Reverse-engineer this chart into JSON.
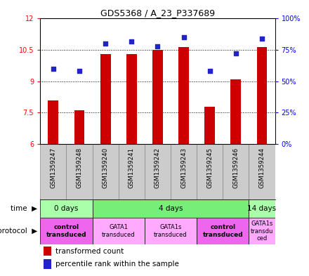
{
  "title": "GDS5368 / A_23_P337689",
  "samples": [
    "GSM1359247",
    "GSM1359248",
    "GSM1359240",
    "GSM1359241",
    "GSM1359242",
    "GSM1359243",
    "GSM1359245",
    "GSM1359246",
    "GSM1359244"
  ],
  "transformed_count": [
    8.1,
    7.6,
    10.3,
    10.3,
    10.5,
    10.65,
    7.8,
    9.1,
    10.65
  ],
  "percentile_rank": [
    60,
    58,
    80,
    82,
    78,
    85,
    58,
    72,
    84
  ],
  "ylim_left": [
    6,
    12
  ],
  "ylim_right": [
    0,
    100
  ],
  "yticks_left": [
    6,
    7.5,
    9,
    10.5,
    12
  ],
  "yticks_right": [
    0,
    25,
    50,
    75,
    100
  ],
  "bar_color": "#cc0000",
  "dot_color": "#2222cc",
  "bar_bottom": 6,
  "time_groups": [
    {
      "label": "0 days",
      "start": 0,
      "end": 2,
      "color": "#aaffaa"
    },
    {
      "label": "4 days",
      "start": 2,
      "end": 8,
      "color": "#77ee77"
    },
    {
      "label": "14 days",
      "start": 8,
      "end": 9,
      "color": "#aaffaa"
    }
  ],
  "protocol_groups": [
    {
      "label": "control\ntransduced",
      "start": 0,
      "end": 2,
      "color": "#ee66ee",
      "bold": true
    },
    {
      "label": "GATA1\ntransduced",
      "start": 2,
      "end": 4,
      "color": "#ffaaff",
      "bold": false
    },
    {
      "label": "GATA1s\ntransduced",
      "start": 4,
      "end": 6,
      "color": "#ffaaff",
      "bold": false
    },
    {
      "label": "control\ntransduced",
      "start": 6,
      "end": 8,
      "color": "#ee66ee",
      "bold": true
    },
    {
      "label": "GATA1s\ntransdu\nced",
      "start": 8,
      "end": 9,
      "color": "#ffaaff",
      "bold": false
    }
  ],
  "legend_red_label": "transformed count",
  "legend_blue_label": "percentile rank within the sample",
  "sample_bg_color": "#cccccc",
  "sample_edge_color": "#888888"
}
